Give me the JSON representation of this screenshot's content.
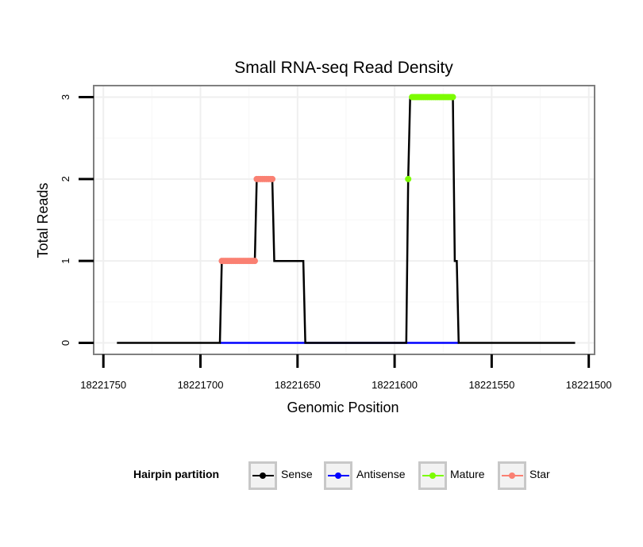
{
  "chart_data": {
    "type": "line",
    "title": "Small RNA-seq Read Density",
    "xlabel": "Genomic Position",
    "ylabel": "Total Reads",
    "x_reversed": true,
    "xlim": [
      18221755,
      18221497
    ],
    "ylim": [
      -0.14,
      3.14
    ],
    "x_ticks": [
      18221750,
      18221700,
      18221650,
      18221600,
      18221550,
      18221500
    ],
    "x_tick_labels": [
      "18221750",
      "18221700",
      "18221650",
      "18221600",
      "18221550",
      "18221500"
    ],
    "y_ticks": [
      0,
      1,
      2,
      3
    ],
    "y_tick_labels": [
      "0",
      "1",
      "2",
      "3"
    ],
    "grid": true,
    "legend": {
      "title": "Hairpin partition",
      "position": "bottom",
      "entries": [
        {
          "name": "Sense",
          "color": "#000000"
        },
        {
          "name": "Antisense",
          "color": "#0000ff"
        },
        {
          "name": "Mature",
          "color": "#7cfc00"
        },
        {
          "name": "Star",
          "color": "#fa8072"
        }
      ]
    },
    "series": [
      {
        "name": "Sense",
        "color": "#000000",
        "style": "line",
        "points": [
          [
            18221743,
            0
          ],
          [
            18221690,
            0
          ],
          [
            18221689,
            1
          ],
          [
            18221672,
            1
          ],
          [
            18221671,
            2
          ],
          [
            18221663,
            2
          ],
          [
            18221662,
            1
          ],
          [
            18221647,
            1
          ],
          [
            18221646,
            0
          ],
          [
            18221594,
            0
          ],
          [
            18221593,
            2
          ],
          [
            18221592,
            3
          ],
          [
            18221570,
            3
          ],
          [
            18221569,
            1
          ],
          [
            18221568,
            1
          ],
          [
            18221567,
            0
          ],
          [
            18221507,
            0
          ]
        ]
      },
      {
        "name": "Antisense",
        "color": "#0000ff",
        "style": "line",
        "points": [
          [
            18221690,
            0
          ],
          [
            18221646,
            0
          ],
          [
            18221593,
            0
          ],
          [
            18221567,
            0
          ]
        ]
      },
      {
        "name": "Mature",
        "color": "#7cfc00",
        "style": "points",
        "points": [
          [
            18221593,
            2
          ],
          [
            18221591,
            3
          ],
          [
            18221590,
            3
          ],
          [
            18221589,
            3
          ],
          [
            18221588,
            3
          ],
          [
            18221587,
            3
          ],
          [
            18221586,
            3
          ],
          [
            18221585,
            3
          ],
          [
            18221584,
            3
          ],
          [
            18221583,
            3
          ],
          [
            18221582,
            3
          ],
          [
            18221581,
            3
          ],
          [
            18221580,
            3
          ],
          [
            18221579,
            3
          ],
          [
            18221578,
            3
          ],
          [
            18221577,
            3
          ],
          [
            18221576,
            3
          ],
          [
            18221575,
            3
          ],
          [
            18221574,
            3
          ],
          [
            18221573,
            3
          ],
          [
            18221572,
            3
          ],
          [
            18221571,
            3
          ],
          [
            18221570,
            3
          ]
        ]
      },
      {
        "name": "Star",
        "color": "#fa8072",
        "style": "points",
        "points": [
          [
            18221689,
            1
          ],
          [
            18221688,
            1
          ],
          [
            18221687,
            1
          ],
          [
            18221686,
            1
          ],
          [
            18221685,
            1
          ],
          [
            18221684,
            1
          ],
          [
            18221683,
            1
          ],
          [
            18221682,
            1
          ],
          [
            18221681,
            1
          ],
          [
            18221680,
            1
          ],
          [
            18221679,
            1
          ],
          [
            18221678,
            1
          ],
          [
            18221677,
            1
          ],
          [
            18221676,
            1
          ],
          [
            18221675,
            1
          ],
          [
            18221674,
            1
          ],
          [
            18221673,
            1
          ],
          [
            18221672,
            1
          ],
          [
            18221671,
            2
          ],
          [
            18221670,
            2
          ],
          [
            18221669,
            2
          ],
          [
            18221668,
            2
          ],
          [
            18221667,
            2
          ],
          [
            18221666,
            2
          ],
          [
            18221665,
            2
          ],
          [
            18221664,
            2
          ],
          [
            18221663,
            2
          ]
        ]
      }
    ]
  }
}
